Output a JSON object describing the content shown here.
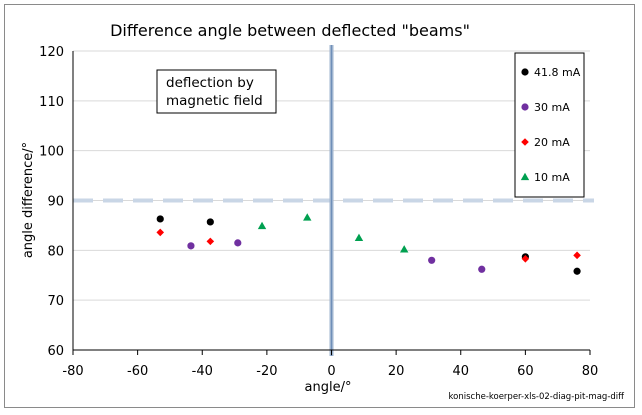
{
  "chart_data": {
    "type": "scatter",
    "title": "Difference angle between deflected \"beams\"",
    "xlabel": "angle/°",
    "ylabel": "angle difference/°",
    "xlim": [
      -80,
      80
    ],
    "ylim": [
      60,
      120
    ],
    "xticks": [
      -80,
      -60,
      -40,
      -20,
      0,
      20,
      40,
      60,
      80
    ],
    "yticks": [
      60,
      70,
      80,
      90,
      100,
      110,
      120
    ],
    "grid": "horizontal",
    "legend_position": "top-right",
    "annotation": [
      "deflection by",
      "magnetic field"
    ],
    "reference_lines": [
      {
        "orientation": "horizontal",
        "value": 90,
        "style": "dashed",
        "color": "#c9d6e6"
      },
      {
        "orientation": "vertical",
        "value": 0,
        "style": "solid",
        "color": "#9fb4cf"
      }
    ],
    "source_note": "konische-koerper-xls-02-diag-pit-mag-diff",
    "series": [
      {
        "name": "41.8 mA",
        "color": "#000000",
        "marker": "circle",
        "points": [
          [
            -53,
            86.3
          ],
          [
            -37.5,
            85.7
          ],
          [
            60,
            78.7
          ],
          [
            76,
            75.8
          ]
        ]
      },
      {
        "name": "30 mA",
        "color": "#7030a0",
        "marker": "circle",
        "points": [
          [
            -43.5,
            80.9
          ],
          [
            -29,
            81.5
          ],
          [
            31,
            78.0
          ],
          [
            46.5,
            76.2
          ]
        ]
      },
      {
        "name": "20 mA",
        "color": "#ff0000",
        "marker": "diamond",
        "points": [
          [
            -53,
            83.6
          ],
          [
            -37.5,
            81.8
          ],
          [
            60,
            78.3
          ],
          [
            76,
            79.0
          ]
        ]
      },
      {
        "name": "10 mA",
        "color": "#00a050",
        "marker": "triangle",
        "points": [
          [
            -21.5,
            84.9
          ],
          [
            -7.5,
            86.6
          ],
          [
            8.5,
            82.5
          ],
          [
            22.5,
            80.2
          ]
        ]
      }
    ]
  }
}
